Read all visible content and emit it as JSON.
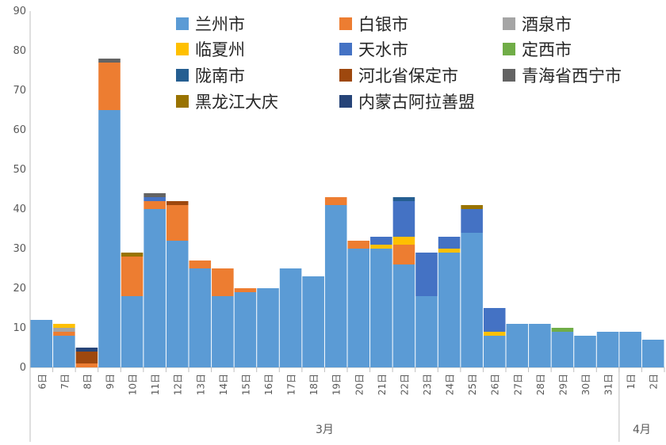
{
  "chart_data": {
    "type": "bar",
    "stacked": true,
    "ylim": [
      0,
      90
    ],
    "yticks": [
      0,
      10,
      20,
      30,
      40,
      50,
      60,
      70,
      80,
      90
    ],
    "grid": false,
    "legend_position": "top-right",
    "categories": [
      "6日",
      "7日",
      "8日",
      "9日",
      "10日",
      "11日",
      "12日",
      "13日",
      "14日",
      "15日",
      "16日",
      "17日",
      "18日",
      "19日",
      "20日",
      "21日",
      "22日",
      "23日",
      "24日",
      "25日",
      "26日",
      "27日",
      "28日",
      "29日",
      "30日",
      "31日",
      "1日",
      "2日"
    ],
    "month_groups": [
      {
        "label": "3月",
        "start": 0,
        "end": 25
      },
      {
        "label": "4月",
        "start": 26,
        "end": 27
      }
    ],
    "series": [
      {
        "name": "兰州市",
        "color": "#5b9bd5",
        "values": [
          12,
          8,
          0,
          65,
          18,
          40,
          32,
          25,
          18,
          19,
          20,
          25,
          23,
          41,
          30,
          30,
          26,
          18,
          29,
          34,
          8,
          11,
          11,
          9,
          8,
          9,
          9,
          7
        ]
      },
      {
        "name": "白银市",
        "color": "#ed7d31",
        "values": [
          0,
          1,
          1,
          12,
          10,
          2,
          9,
          2,
          7,
          1,
          0,
          0,
          0,
          2,
          2,
          0,
          5,
          0,
          0,
          0,
          0,
          0,
          0,
          0,
          0,
          0,
          0,
          0
        ]
      },
      {
        "name": "酒泉市",
        "color": "#a5a5a5",
        "values": [
          0,
          1,
          0,
          0,
          0,
          0,
          0,
          0,
          0,
          0,
          0,
          0,
          0,
          0,
          0,
          0,
          0,
          0,
          0,
          0,
          0,
          0,
          0,
          0,
          0,
          0,
          0,
          0
        ]
      },
      {
        "name": "临夏州",
        "color": "#ffc000",
        "values": [
          0,
          1,
          0,
          0,
          0,
          0,
          0,
          0,
          0,
          0,
          0,
          0,
          0,
          0,
          0,
          1,
          2,
          0,
          1,
          0,
          1,
          0,
          0,
          0,
          0,
          0,
          0,
          0
        ]
      },
      {
        "name": "天水市",
        "color": "#4472c4",
        "values": [
          0,
          0,
          0,
          0,
          0,
          1,
          0,
          0,
          0,
          0,
          0,
          0,
          0,
          0,
          0,
          2,
          9,
          11,
          3,
          6,
          6,
          0,
          0,
          0,
          0,
          0,
          0,
          0
        ]
      },
      {
        "name": "定西市",
        "color": "#70ad47",
        "values": [
          0,
          0,
          0,
          0,
          0,
          0,
          0,
          0,
          0,
          0,
          0,
          0,
          0,
          0,
          0,
          0,
          0,
          0,
          0,
          0,
          0,
          0,
          0,
          1,
          0,
          0,
          0,
          0
        ]
      },
      {
        "name": "陇南市",
        "color": "#255e91",
        "values": [
          0,
          0,
          0,
          0,
          0,
          0,
          0,
          0,
          0,
          0,
          0,
          0,
          0,
          0,
          0,
          0,
          1,
          0,
          0,
          0,
          0,
          0,
          0,
          0,
          0,
          0,
          0,
          0
        ]
      },
      {
        "name": "河北省保定市",
        "color": "#9e480e",
        "values": [
          0,
          0,
          3,
          0,
          0,
          0,
          1,
          0,
          0,
          0,
          0,
          0,
          0,
          0,
          0,
          0,
          0,
          0,
          0,
          0,
          0,
          0,
          0,
          0,
          0,
          0,
          0,
          0
        ]
      },
      {
        "name": "青海省西宁市",
        "color": "#636363",
        "values": [
          0,
          0,
          0,
          1,
          0,
          1,
          0,
          0,
          0,
          0,
          0,
          0,
          0,
          0,
          0,
          0,
          0,
          0,
          0,
          0,
          0,
          0,
          0,
          0,
          0,
          0,
          0,
          0
        ]
      },
      {
        "name": "黑龙江大庆",
        "color": "#997300",
        "values": [
          0,
          0,
          0,
          0,
          1,
          0,
          0,
          0,
          0,
          0,
          0,
          0,
          0,
          0,
          0,
          0,
          0,
          0,
          0,
          1,
          0,
          0,
          0,
          0,
          0,
          0,
          0,
          0
        ]
      },
      {
        "name": "内蒙古阿拉善盟",
        "color": "#264478",
        "values": [
          0,
          0,
          1,
          0,
          0,
          0,
          0,
          0,
          0,
          0,
          0,
          0,
          0,
          0,
          0,
          0,
          0,
          0,
          0,
          0,
          0,
          0,
          0,
          0,
          0,
          0,
          0,
          0
        ]
      }
    ]
  }
}
